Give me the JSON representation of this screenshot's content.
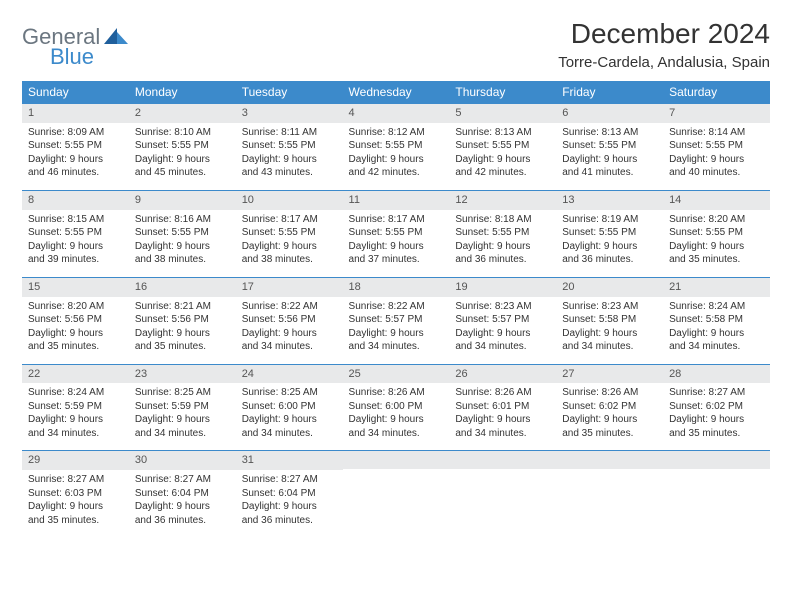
{
  "brand": {
    "word1": "General",
    "word2": "Blue",
    "tri_color": "#1f5f9c"
  },
  "title": "December 2024",
  "location": "Torre-Cardela, Andalusia, Spain",
  "colors": {
    "header_bg": "#3c8acb",
    "header_text": "#ffffff",
    "daynum_bg": "#e8e9ea",
    "row_border": "#3c8acb",
    "body_text": "#333333"
  },
  "typography": {
    "title_fontsize": 28,
    "subtitle_fontsize": 15,
    "th_fontsize": 12,
    "cell_fontsize": 10
  },
  "weekdays": [
    "Sunday",
    "Monday",
    "Tuesday",
    "Wednesday",
    "Thursday",
    "Friday",
    "Saturday"
  ],
  "weeks": [
    [
      {
        "n": "1",
        "sr": "Sunrise: 8:09 AM",
        "ss": "Sunset: 5:55 PM",
        "d1": "Daylight: 9 hours",
        "d2": "and 46 minutes."
      },
      {
        "n": "2",
        "sr": "Sunrise: 8:10 AM",
        "ss": "Sunset: 5:55 PM",
        "d1": "Daylight: 9 hours",
        "d2": "and 45 minutes."
      },
      {
        "n": "3",
        "sr": "Sunrise: 8:11 AM",
        "ss": "Sunset: 5:55 PM",
        "d1": "Daylight: 9 hours",
        "d2": "and 43 minutes."
      },
      {
        "n": "4",
        "sr": "Sunrise: 8:12 AM",
        "ss": "Sunset: 5:55 PM",
        "d1": "Daylight: 9 hours",
        "d2": "and 42 minutes."
      },
      {
        "n": "5",
        "sr": "Sunrise: 8:13 AM",
        "ss": "Sunset: 5:55 PM",
        "d1": "Daylight: 9 hours",
        "d2": "and 42 minutes."
      },
      {
        "n": "6",
        "sr": "Sunrise: 8:13 AM",
        "ss": "Sunset: 5:55 PM",
        "d1": "Daylight: 9 hours",
        "d2": "and 41 minutes."
      },
      {
        "n": "7",
        "sr": "Sunrise: 8:14 AM",
        "ss": "Sunset: 5:55 PM",
        "d1": "Daylight: 9 hours",
        "d2": "and 40 minutes."
      }
    ],
    [
      {
        "n": "8",
        "sr": "Sunrise: 8:15 AM",
        "ss": "Sunset: 5:55 PM",
        "d1": "Daylight: 9 hours",
        "d2": "and 39 minutes."
      },
      {
        "n": "9",
        "sr": "Sunrise: 8:16 AM",
        "ss": "Sunset: 5:55 PM",
        "d1": "Daylight: 9 hours",
        "d2": "and 38 minutes."
      },
      {
        "n": "10",
        "sr": "Sunrise: 8:17 AM",
        "ss": "Sunset: 5:55 PM",
        "d1": "Daylight: 9 hours",
        "d2": "and 38 minutes."
      },
      {
        "n": "11",
        "sr": "Sunrise: 8:17 AM",
        "ss": "Sunset: 5:55 PM",
        "d1": "Daylight: 9 hours",
        "d2": "and 37 minutes."
      },
      {
        "n": "12",
        "sr": "Sunrise: 8:18 AM",
        "ss": "Sunset: 5:55 PM",
        "d1": "Daylight: 9 hours",
        "d2": "and 36 minutes."
      },
      {
        "n": "13",
        "sr": "Sunrise: 8:19 AM",
        "ss": "Sunset: 5:55 PM",
        "d1": "Daylight: 9 hours",
        "d2": "and 36 minutes."
      },
      {
        "n": "14",
        "sr": "Sunrise: 8:20 AM",
        "ss": "Sunset: 5:55 PM",
        "d1": "Daylight: 9 hours",
        "d2": "and 35 minutes."
      }
    ],
    [
      {
        "n": "15",
        "sr": "Sunrise: 8:20 AM",
        "ss": "Sunset: 5:56 PM",
        "d1": "Daylight: 9 hours",
        "d2": "and 35 minutes."
      },
      {
        "n": "16",
        "sr": "Sunrise: 8:21 AM",
        "ss": "Sunset: 5:56 PM",
        "d1": "Daylight: 9 hours",
        "d2": "and 35 minutes."
      },
      {
        "n": "17",
        "sr": "Sunrise: 8:22 AM",
        "ss": "Sunset: 5:56 PM",
        "d1": "Daylight: 9 hours",
        "d2": "and 34 minutes."
      },
      {
        "n": "18",
        "sr": "Sunrise: 8:22 AM",
        "ss": "Sunset: 5:57 PM",
        "d1": "Daylight: 9 hours",
        "d2": "and 34 minutes."
      },
      {
        "n": "19",
        "sr": "Sunrise: 8:23 AM",
        "ss": "Sunset: 5:57 PM",
        "d1": "Daylight: 9 hours",
        "d2": "and 34 minutes."
      },
      {
        "n": "20",
        "sr": "Sunrise: 8:23 AM",
        "ss": "Sunset: 5:58 PM",
        "d1": "Daylight: 9 hours",
        "d2": "and 34 minutes."
      },
      {
        "n": "21",
        "sr": "Sunrise: 8:24 AM",
        "ss": "Sunset: 5:58 PM",
        "d1": "Daylight: 9 hours",
        "d2": "and 34 minutes."
      }
    ],
    [
      {
        "n": "22",
        "sr": "Sunrise: 8:24 AM",
        "ss": "Sunset: 5:59 PM",
        "d1": "Daylight: 9 hours",
        "d2": "and 34 minutes."
      },
      {
        "n": "23",
        "sr": "Sunrise: 8:25 AM",
        "ss": "Sunset: 5:59 PM",
        "d1": "Daylight: 9 hours",
        "d2": "and 34 minutes."
      },
      {
        "n": "24",
        "sr": "Sunrise: 8:25 AM",
        "ss": "Sunset: 6:00 PM",
        "d1": "Daylight: 9 hours",
        "d2": "and 34 minutes."
      },
      {
        "n": "25",
        "sr": "Sunrise: 8:26 AM",
        "ss": "Sunset: 6:00 PM",
        "d1": "Daylight: 9 hours",
        "d2": "and 34 minutes."
      },
      {
        "n": "26",
        "sr": "Sunrise: 8:26 AM",
        "ss": "Sunset: 6:01 PM",
        "d1": "Daylight: 9 hours",
        "d2": "and 34 minutes."
      },
      {
        "n": "27",
        "sr": "Sunrise: 8:26 AM",
        "ss": "Sunset: 6:02 PM",
        "d1": "Daylight: 9 hours",
        "d2": "and 35 minutes."
      },
      {
        "n": "28",
        "sr": "Sunrise: 8:27 AM",
        "ss": "Sunset: 6:02 PM",
        "d1": "Daylight: 9 hours",
        "d2": "and 35 minutes."
      }
    ],
    [
      {
        "n": "29",
        "sr": "Sunrise: 8:27 AM",
        "ss": "Sunset: 6:03 PM",
        "d1": "Daylight: 9 hours",
        "d2": "and 35 minutes."
      },
      {
        "n": "30",
        "sr": "Sunrise: 8:27 AM",
        "ss": "Sunset: 6:04 PM",
        "d1": "Daylight: 9 hours",
        "d2": "and 36 minutes."
      },
      {
        "n": "31",
        "sr": "Sunrise: 8:27 AM",
        "ss": "Sunset: 6:04 PM",
        "d1": "Daylight: 9 hours",
        "d2": "and 36 minutes."
      },
      {
        "empty": true
      },
      {
        "empty": true
      },
      {
        "empty": true
      },
      {
        "empty": true
      }
    ]
  ]
}
